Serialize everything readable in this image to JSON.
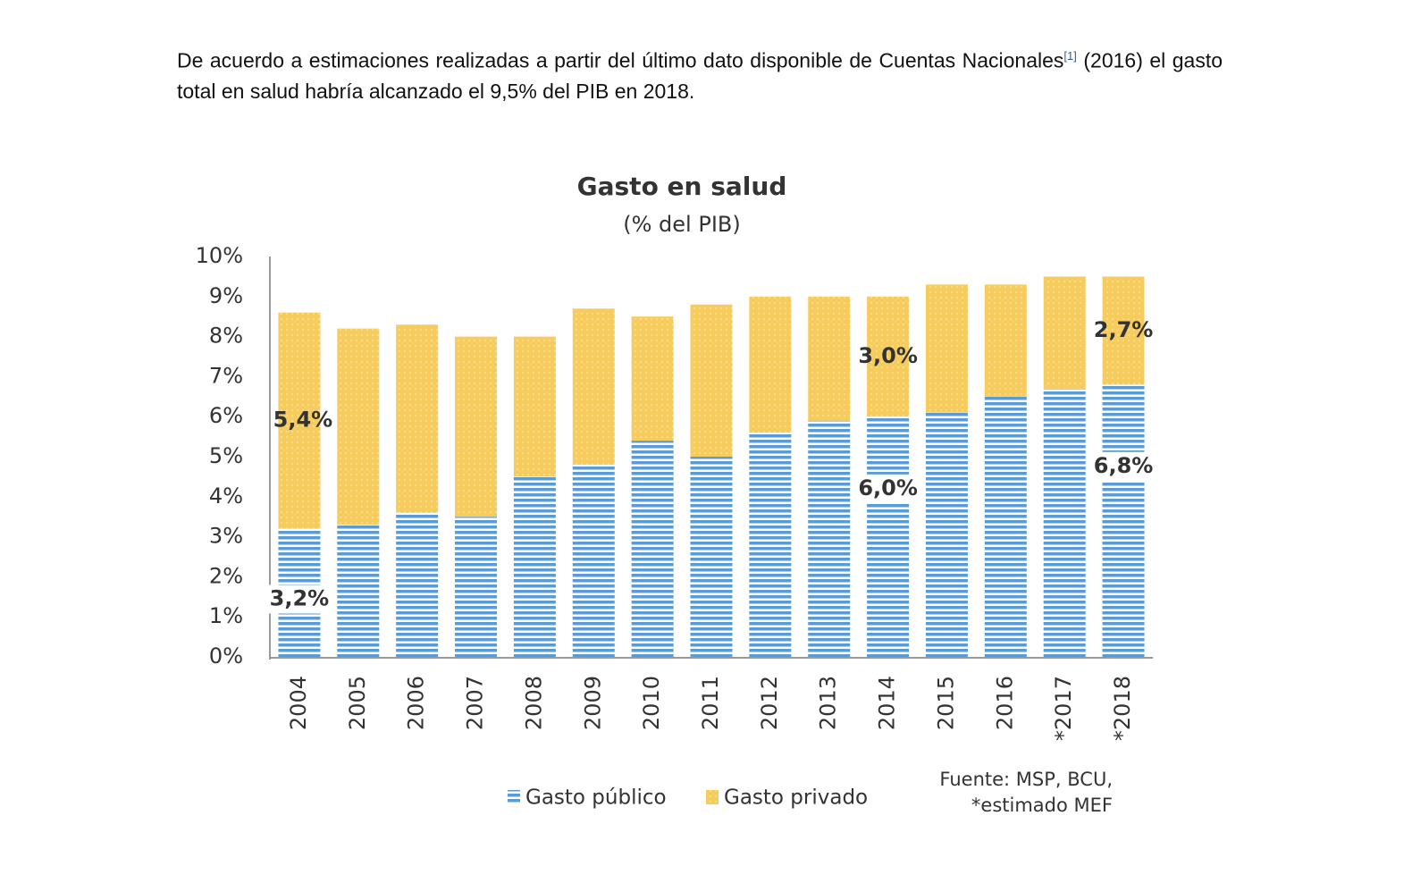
{
  "paragraph": {
    "text_before": "De acuerdo a estimaciones realizadas a partir del último dato disponible de Cuentas Nacionales",
    "footnote_ref": "[1]",
    "text_after": " (2016) el gasto total en salud habría alcanzado el 9,5% del PIB en 2018."
  },
  "chart_data": {
    "type": "stacked-bar",
    "title": "Gasto en salud",
    "subtitle": "(% del PIB)",
    "categories": [
      "2004",
      "2005",
      "2006",
      "2007",
      "2008",
      "2009",
      "2010",
      "2011",
      "2012",
      "2013",
      "2014",
      "2015",
      "2016",
      "*2017",
      "*2018"
    ],
    "series": [
      {
        "name": "Gasto público",
        "color": "#5b9bd5",
        "values": [
          3.2,
          3.3,
          3.6,
          3.5,
          4.5,
          4.8,
          5.4,
          5.0,
          5.6,
          5.9,
          6.0,
          6.1,
          6.5,
          6.7,
          6.8
        ],
        "value_labels": [
          "3,2%",
          null,
          null,
          null,
          null,
          null,
          null,
          null,
          null,
          null,
          "6,0%",
          null,
          null,
          null,
          "6,8%"
        ]
      },
      {
        "name": "Gasto privado",
        "color": "#f5c342",
        "values": [
          5.4,
          4.9,
          4.7,
          4.5,
          3.5,
          3.9,
          3.1,
          3.8,
          3.4,
          3.1,
          3.0,
          3.2,
          2.8,
          2.8,
          2.7
        ],
        "value_labels": [
          "5,4%",
          null,
          null,
          null,
          null,
          null,
          null,
          null,
          null,
          null,
          "3,0%",
          null,
          null,
          null,
          "2,7%"
        ]
      }
    ],
    "ylim": [
      0,
      10
    ],
    "yticks": [
      {
        "value": 0,
        "label": "0%"
      },
      {
        "value": 1,
        "label": "1%"
      },
      {
        "value": 2,
        "label": "2%"
      },
      {
        "value": 3,
        "label": "3%"
      },
      {
        "value": 4,
        "label": "4%"
      },
      {
        "value": 5,
        "label": "5%"
      },
      {
        "value": 6,
        "label": "6%"
      },
      {
        "value": 7,
        "label": "7%"
      },
      {
        "value": 8,
        "label": "8%"
      },
      {
        "value": 9,
        "label": "9%"
      },
      {
        "value": 10,
        "label": "10%"
      }
    ],
    "grid": false,
    "legend": "bottom",
    "source": [
      "Fuente: MSP, BCU,",
      "*estimado MEF"
    ]
  }
}
